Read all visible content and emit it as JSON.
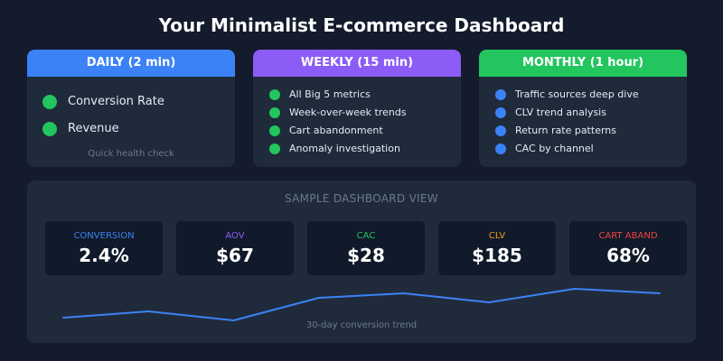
{
  "page": {
    "title": "Your Minimalist E-commerce Dashboard"
  },
  "cards": {
    "daily": {
      "header": "DAILY (2 min)",
      "color": "#3b82f6",
      "dot_color": "#22c55e",
      "items": [
        "Conversion Rate",
        "Revenue"
      ],
      "note": "Quick health check"
    },
    "weekly": {
      "header": "WEEKLY (15 min)",
      "color": "#8b5cf6",
      "dot_color": "#22c55e",
      "items": [
        "All Big 5 metrics",
        "Week-over-week trends",
        "Cart abandonment",
        "Anomaly investigation"
      ]
    },
    "monthly": {
      "header": "MONTHLY (1 hour)",
      "color": "#22c55e",
      "dot_color": "#3b82f6",
      "items": [
        "Traffic sources deep dive",
        "CLV trend analysis",
        "Return rate patterns",
        "CAC by channel"
      ]
    }
  },
  "sample": {
    "title": "SAMPLE DASHBOARD VIEW",
    "kpis": [
      {
        "label": "CONVERSION",
        "value": "2.4%",
        "color": "#3b82f6"
      },
      {
        "label": "AOV",
        "value": "$67",
        "color": "#8b5cf6"
      },
      {
        "label": "CAC",
        "value": "$28",
        "color": "#22c55e"
      },
      {
        "label": "CLV",
        "value": "$185",
        "color": "#f59e0b"
      },
      {
        "label": "CART ABAND",
        "value": "68%",
        "color": "#ef4444"
      }
    ],
    "trend_caption": "30-day conversion trend",
    "trend_color": "#3b82f6",
    "trend_points": [
      0.3,
      1.0,
      0.0,
      2.5,
      3.0,
      2.0,
      3.5,
      3.0
    ]
  }
}
